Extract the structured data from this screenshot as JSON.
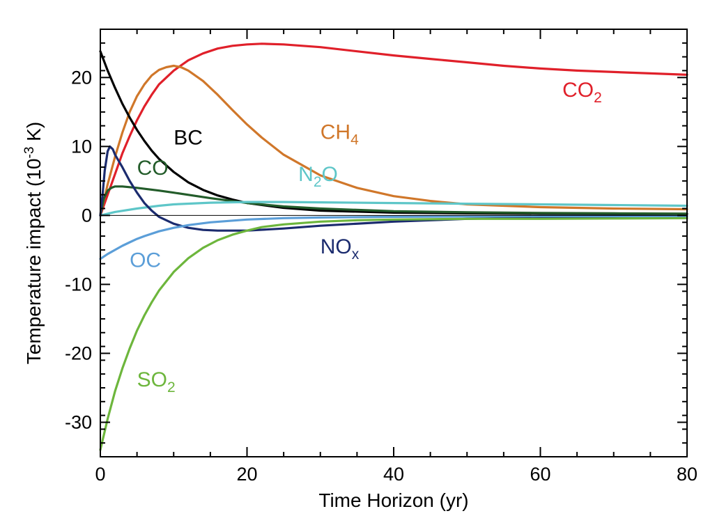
{
  "chart_data": {
    "type": "line",
    "title": "",
    "xlabel": "Time Horizon (yr)",
    "ylabel": {
      "main": "Temperature impact (10",
      "sup": "-3",
      "tail": " K)"
    },
    "xlim": [
      0,
      80
    ],
    "ylim": [
      -35,
      27
    ],
    "xticks": [
      0,
      20,
      40,
      60,
      80
    ],
    "xtick_labels": [
      "0",
      "20",
      "40",
      "60",
      "80"
    ],
    "yticks": [
      -30,
      -20,
      -10,
      0,
      10,
      20
    ],
    "ytick_labels": [
      "-30",
      "-20",
      "-10",
      "0",
      "10",
      "20"
    ],
    "grid": false,
    "legend": "inline labels",
    "zero_line": true,
    "series": [
      {
        "name": "CO2",
        "label": {
          "main": "CO",
          "sub": "2"
        },
        "color": "#e0202a",
        "label_at": [
          63,
          17.2
        ],
        "points": [
          [
            0,
            0
          ],
          [
            1,
            3
          ],
          [
            2,
            6
          ],
          [
            3,
            9
          ],
          [
            4,
            11.5
          ],
          [
            5,
            13.8
          ],
          [
            6,
            15.8
          ],
          [
            7,
            17.5
          ],
          [
            8,
            19
          ],
          [
            10,
            21
          ],
          [
            12,
            22.5
          ],
          [
            14,
            23.5
          ],
          [
            16,
            24.2
          ],
          [
            18,
            24.6
          ],
          [
            20,
            24.8
          ],
          [
            22,
            24.9
          ],
          [
            25,
            24.8
          ],
          [
            30,
            24.4
          ],
          [
            35,
            23.8
          ],
          [
            40,
            23.2
          ],
          [
            45,
            22.7
          ],
          [
            50,
            22.2
          ],
          [
            55,
            21.7
          ],
          [
            60,
            21.3
          ],
          [
            65,
            21.0
          ],
          [
            70,
            20.8
          ],
          [
            75,
            20.6
          ],
          [
            80,
            20.4
          ]
        ]
      },
      {
        "name": "CH4",
        "label": {
          "main": "CH",
          "sub": "4"
        },
        "color": "#d0772a",
        "label_at": [
          30,
          11.1
        ],
        "points": [
          [
            0,
            0
          ],
          [
            1,
            4.5
          ],
          [
            2,
            8.5
          ],
          [
            3,
            12
          ],
          [
            4,
            15
          ],
          [
            5,
            17.3
          ],
          [
            6,
            19
          ],
          [
            7,
            20.3
          ],
          [
            8,
            21.1
          ],
          [
            9,
            21.5
          ],
          [
            10,
            21.7
          ],
          [
            11,
            21.5
          ],
          [
            12,
            21
          ],
          [
            14,
            19.5
          ],
          [
            16,
            17.5
          ],
          [
            18,
            15.3
          ],
          [
            20,
            13.2
          ],
          [
            22,
            11.3
          ],
          [
            25,
            8.8
          ],
          [
            30,
            5.8
          ],
          [
            35,
            4
          ],
          [
            40,
            2.8
          ],
          [
            45,
            2.1
          ],
          [
            50,
            1.6
          ],
          [
            55,
            1.4
          ],
          [
            60,
            1.2
          ],
          [
            70,
            1
          ],
          [
            80,
            0.9
          ]
        ]
      },
      {
        "name": "BC",
        "label": {
          "main": "BC",
          "sub": ""
        },
        "color": "#000000",
        "label_at": [
          10,
          10.3
        ],
        "points": [
          [
            0,
            23.8
          ],
          [
            1,
            21
          ],
          [
            2,
            18.5
          ],
          [
            3,
            16.2
          ],
          [
            4,
            14.2
          ],
          [
            5,
            12.4
          ],
          [
            6,
            10.8
          ],
          [
            7,
            9.4
          ],
          [
            8,
            8.2
          ],
          [
            10,
            6.3
          ],
          [
            12,
            4.8
          ],
          [
            14,
            3.7
          ],
          [
            16,
            2.9
          ],
          [
            18,
            2.3
          ],
          [
            20,
            1.8
          ],
          [
            25,
            1.1
          ],
          [
            30,
            0.7
          ],
          [
            40,
            0.4
          ],
          [
            50,
            0.3
          ],
          [
            60,
            0.25
          ],
          [
            70,
            0.2
          ],
          [
            80,
            0.2
          ]
        ]
      },
      {
        "name": "CO",
        "label": {
          "main": "CO",
          "sub": ""
        },
        "color": "#235c2a",
        "label_at": [
          5,
          5.9
        ],
        "points": [
          [
            0,
            0
          ],
          [
            0.5,
            2.5
          ],
          [
            1,
            3.6
          ],
          [
            1.5,
            4
          ],
          [
            2,
            4.2
          ],
          [
            3,
            4.2
          ],
          [
            5,
            4
          ],
          [
            8,
            3.6
          ],
          [
            10,
            3.3
          ],
          [
            15,
            2.5
          ],
          [
            20,
            1.8
          ],
          [
            25,
            1.3
          ],
          [
            30,
            1
          ],
          [
            40,
            0.6
          ],
          [
            50,
            0.45
          ],
          [
            60,
            0.35
          ],
          [
            70,
            0.3
          ],
          [
            80,
            0.25
          ]
        ]
      },
      {
        "name": "N2O",
        "label": {
          "main": "N",
          "sub": "2",
          "tail": "O"
        },
        "color": "#5ec6c8",
        "label_at": [
          27,
          5.0
        ],
        "points": [
          [
            0,
            0
          ],
          [
            2,
            0.5
          ],
          [
            5,
            1
          ],
          [
            8,
            1.4
          ],
          [
            10,
            1.6
          ],
          [
            15,
            1.85
          ],
          [
            20,
            1.95
          ],
          [
            25,
            1.95
          ],
          [
            30,
            1.9
          ],
          [
            40,
            1.8
          ],
          [
            50,
            1.7
          ],
          [
            60,
            1.6
          ],
          [
            70,
            1.5
          ],
          [
            80,
            1.4
          ]
        ]
      },
      {
        "name": "NOx",
        "label": {
          "main": "NO",
          "sub": "x"
        },
        "color": "#1b2b6e",
        "label_at": [
          30,
          -5.5
        ],
        "points": [
          [
            0,
            0
          ],
          [
            0.3,
            3
          ],
          [
            0.6,
            6.5
          ],
          [
            1,
            9.3
          ],
          [
            1.3,
            10
          ],
          [
            1.7,
            9.6
          ],
          [
            2,
            8.8
          ],
          [
            3,
            7
          ],
          [
            4,
            5
          ],
          [
            5,
            3.3
          ],
          [
            6,
            1.8
          ],
          [
            7,
            0.7
          ],
          [
            8,
            -0.2
          ],
          [
            10,
            -1.2
          ],
          [
            12,
            -1.8
          ],
          [
            14,
            -2.1
          ],
          [
            16,
            -2.2
          ],
          [
            20,
            -2.2
          ],
          [
            25,
            -1.9
          ],
          [
            30,
            -1.5
          ],
          [
            40,
            -0.9
          ],
          [
            50,
            -0.5
          ],
          [
            60,
            -0.3
          ],
          [
            70,
            -0.2
          ],
          [
            80,
            -0.1
          ]
        ]
      },
      {
        "name": "OC",
        "label": {
          "main": "OC",
          "sub": ""
        },
        "color": "#5b9ed8",
        "label_at": [
          4,
          -7.5
        ],
        "points": [
          [
            0,
            -6.3
          ],
          [
            1,
            -5.6
          ],
          [
            2,
            -5
          ],
          [
            3,
            -4.4
          ],
          [
            4,
            -3.9
          ],
          [
            5,
            -3.4
          ],
          [
            6,
            -3
          ],
          [
            8,
            -2.3
          ],
          [
            10,
            -1.8
          ],
          [
            12,
            -1.4
          ],
          [
            15,
            -1
          ],
          [
            20,
            -0.6
          ],
          [
            25,
            -0.4
          ],
          [
            30,
            -0.3
          ],
          [
            40,
            -0.2
          ],
          [
            60,
            -0.1
          ],
          [
            80,
            -0.1
          ]
        ]
      },
      {
        "name": "SO2",
        "label": {
          "main": "SO",
          "sub": "2"
        },
        "color": "#6db63c",
        "label_at": [
          5,
          -24.8
        ],
        "points": [
          [
            0,
            -34
          ],
          [
            1,
            -29.5
          ],
          [
            2,
            -25.5
          ],
          [
            3,
            -22.2
          ],
          [
            4,
            -19.3
          ],
          [
            5,
            -16.7
          ],
          [
            6,
            -14.5
          ],
          [
            7,
            -12.6
          ],
          [
            8,
            -10.9
          ],
          [
            10,
            -8.2
          ],
          [
            12,
            -6.2
          ],
          [
            14,
            -4.7
          ],
          [
            16,
            -3.6
          ],
          [
            18,
            -2.8
          ],
          [
            20,
            -2.2
          ],
          [
            22,
            -1.7
          ],
          [
            25,
            -1.3
          ],
          [
            30,
            -0.9
          ],
          [
            35,
            -0.7
          ],
          [
            40,
            -0.6
          ],
          [
            50,
            -0.5
          ],
          [
            60,
            -0.5
          ],
          [
            70,
            -0.45
          ],
          [
            80,
            -0.4
          ]
        ]
      }
    ]
  }
}
